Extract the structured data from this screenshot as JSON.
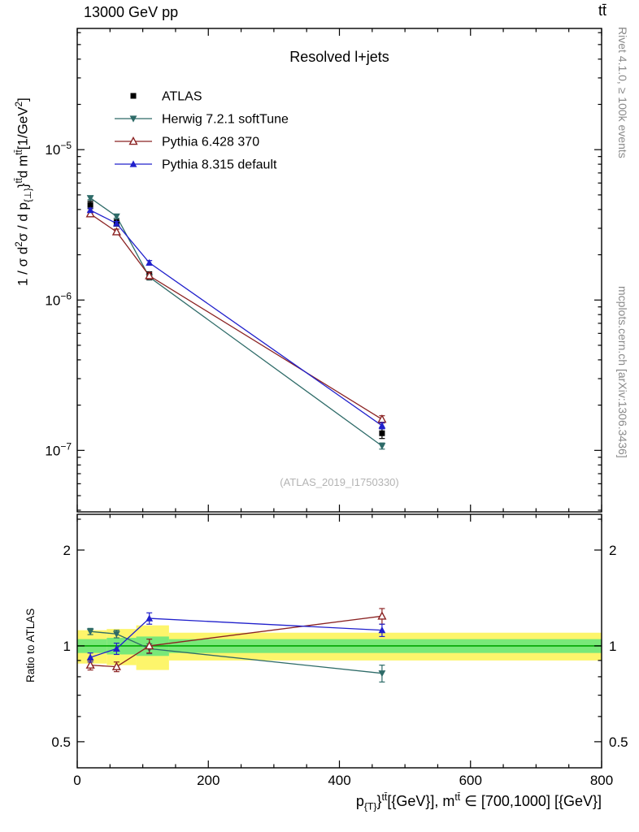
{
  "header": {
    "beam_energy": "13000 GeV pp",
    "process": "tt̄"
  },
  "sidebar": {
    "rivet_info": "Rivet 4.1.0, ≥ 100k events",
    "mcplots_credit": "mcplots.cern.ch [arXiv:1306.3436]"
  },
  "chart_data": {
    "type": "line",
    "title": "Resolved l+jets",
    "watermark": "(ATLAS_2019_I1750330)",
    "ratio_label": "Ratio to ATLAS",
    "ylabel_rich": [
      {
        "t": "1 / σ d"
      },
      {
        "t": "2",
        "s": "sup"
      },
      {
        "t": "σ /  d p"
      },
      {
        "t": "{⊥}",
        "s": "sub"
      },
      {
        "t": "}"
      },
      {
        "t": "tt̄",
        "s": "sup"
      },
      {
        "t": "d m"
      },
      {
        "t": "tt̄",
        "s": "sup"
      },
      {
        "t": "[1/GeV"
      },
      {
        "t": "2",
        "s": "sup"
      },
      {
        "t": "]"
      }
    ],
    "xlabel_rich": [
      {
        "t": "p"
      },
      {
        "t": "{T}",
        "s": "sub"
      },
      {
        "t": "}"
      },
      {
        "t": "tt̄",
        "s": "sup"
      },
      {
        "t": "[{GeV}], m"
      },
      {
        "t": "tt̄",
        "s": "sup"
      },
      {
        "t": " ∈ [700,1000] [{GeV}]"
      }
    ],
    "xlim": [
      0,
      800
    ],
    "x_major_ticks": [
      0,
      200,
      400,
      600,
      800
    ],
    "x_tick_labels": [
      "0",
      "200",
      "400",
      "600",
      "800"
    ],
    "x_minor_step": 50,
    "top_axis": {
      "scale": "log",
      "ylim": [
        3.9e-08,
        6.4e-05
      ],
      "tick_labels": [
        {
          "v": 1e-05,
          "base": "10",
          "exp": "−5"
        },
        {
          "v": 1e-06,
          "base": "10",
          "exp": "−6"
        },
        {
          "v": 1e-07,
          "base": "10",
          "exp": "−7"
        }
      ]
    },
    "ratio_axis": {
      "scale": "log",
      "ylim": [
        0.414,
        2.59
      ],
      "major_ticks": [
        {
          "v": 2,
          "label": "2"
        },
        {
          "v": 1,
          "label": "1"
        },
        {
          "v": 0.5,
          "label": "0.5"
        }
      ],
      "minor_ticks": [
        0.6,
        0.7,
        0.8,
        0.9,
        2.5
      ]
    },
    "x": [
      20,
      60,
      110,
      465
    ],
    "series": [
      {
        "name": "ATLAS",
        "marker": "square",
        "color": "#000000",
        "line": false,
        "values": [
          4.3e-06,
          3.3e-06,
          1.45e-06,
          1.3e-07
        ],
        "errors": [
          2.5e-07,
          2e-07,
          9e-08,
          1e-08
        ]
      },
      {
        "name": "Herwig 7.2.1 softTune",
        "marker": "triangle-down",
        "color": "#2e6b68",
        "line": true,
        "values": [
          4.77e-06,
          3.6e-06,
          1.42e-06,
          1.07e-07
        ],
        "errors": [
          1.2e-07,
          1e-07,
          5e-08,
          5e-09
        ],
        "ratio": [
          1.11,
          1.09,
          0.98,
          0.82
        ],
        "ratio_err": [
          0.025,
          0.03,
          0.035,
          0.05
        ]
      },
      {
        "name": "Pythia 6.428 370",
        "marker": "triangle-open",
        "color": "#8b2323",
        "line": true,
        "values": [
          3.74e-06,
          2.84e-06,
          1.45e-06,
          1.61e-07
        ],
        "errors": [
          1.5e-07,
          1.2e-07,
          7e-08,
          9e-09
        ],
        "ratio": [
          0.87,
          0.86,
          1.0,
          1.24
        ],
        "ratio_err": [
          0.03,
          0.03,
          0.05,
          0.07
        ]
      },
      {
        "name": "Pythia 8.315 default",
        "marker": "triangle-up",
        "color": "#2020cc",
        "line": true,
        "values": [
          3.96e-06,
          3.23e-06,
          1.77e-06,
          1.46e-07
        ],
        "errors": [
          1.2e-07,
          1e-07,
          6e-08,
          7e-09
        ],
        "ratio": [
          0.92,
          0.98,
          1.22,
          1.12
        ],
        "ratio_err": [
          0.03,
          0.04,
          0.05,
          0.05
        ]
      }
    ],
    "bands": {
      "ref_line_color": "#00a400",
      "layers": [
        {
          "name": "yellow-uncertainty-band",
          "color": "#fdf56b",
          "segments": [
            {
              "x1": 0,
              "x2": 45,
              "lo": 0.88,
              "hi": 1.12
            },
            {
              "x1": 45,
              "x2": 90,
              "lo": 0.87,
              "hi": 1.13
            },
            {
              "x1": 90,
              "x2": 140,
              "lo": 0.84,
              "hi": 1.16
            },
            {
              "x1": 140,
              "x2": 800,
              "lo": 0.9,
              "hi": 1.1
            }
          ]
        },
        {
          "name": "green-uncertainty-band",
          "color": "#79e879",
          "segments": [
            {
              "x1": 0,
              "x2": 45,
              "lo": 0.95,
              "hi": 1.05
            },
            {
              "x1": 45,
              "x2": 90,
              "lo": 0.94,
              "hi": 1.06
            },
            {
              "x1": 90,
              "x2": 140,
              "lo": 0.93,
              "hi": 1.07
            },
            {
              "x1": 140,
              "x2": 800,
              "lo": 0.95,
              "hi": 1.05
            }
          ]
        }
      ]
    }
  }
}
